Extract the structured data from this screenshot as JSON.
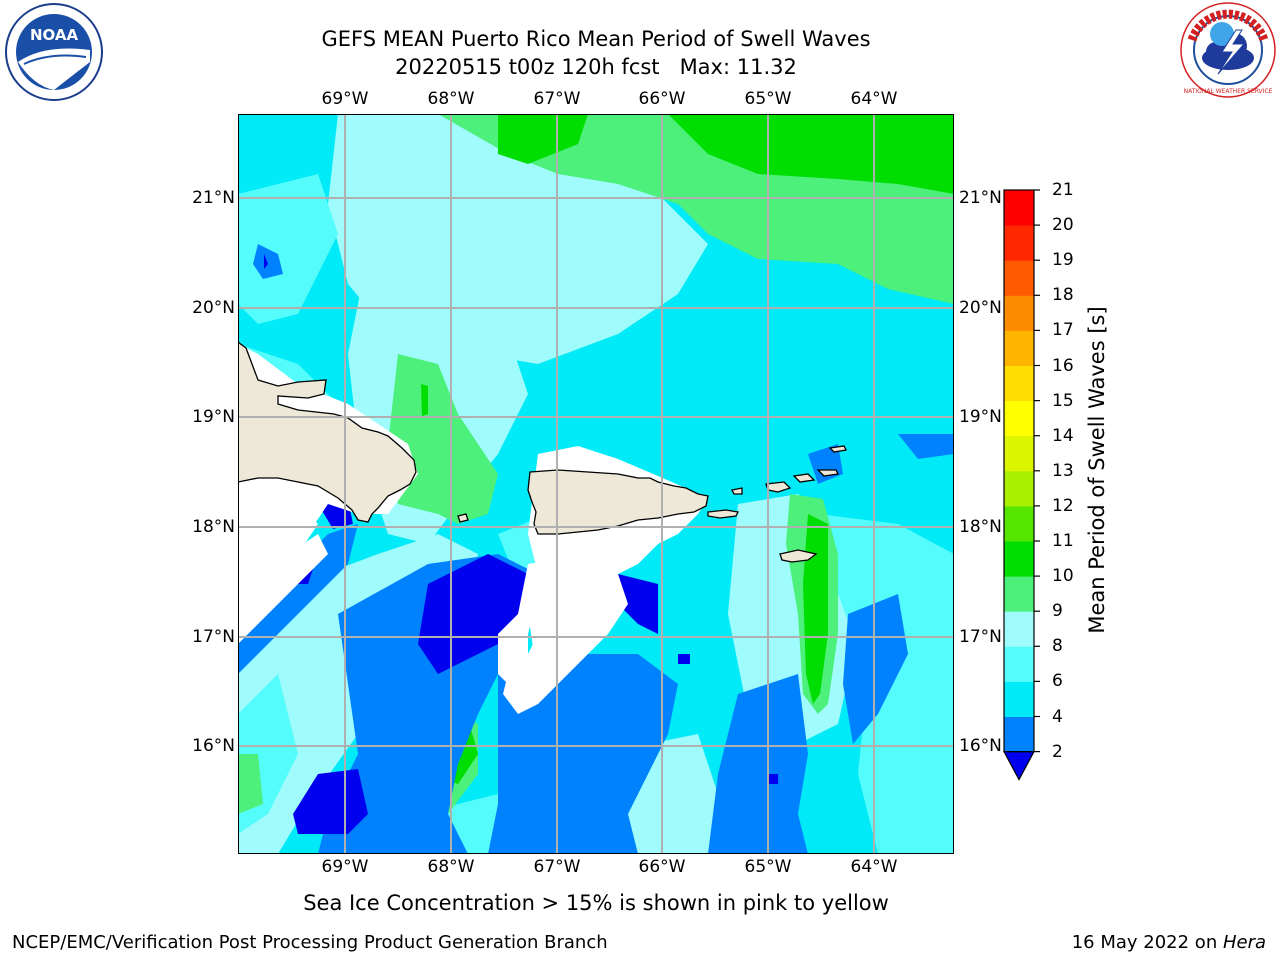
{
  "map": {
    "title_line1": "GEFS MEAN Puerto Rico Mean Period of Swell Waves",
    "title_line2": "20220515 t00z 120h fcst   Max: 11.32",
    "lon_labels": [
      "69°W",
      "68°W",
      "67°W",
      "66°W",
      "65°W",
      "64°W"
    ],
    "lat_labels": [
      "21°N",
      "20°N",
      "19°N",
      "18°N",
      "17°N",
      "16°N"
    ],
    "extent": {
      "lon": [
        -70.0,
        -63.3
      ],
      "lat": [
        15.0,
        21.75
      ]
    },
    "note": "Sea Ice Concentration > 15% is shown in pink to yellow",
    "regions": [
      "Hispaniola",
      "Puerto Rico",
      "Virgin Islands",
      "St. Croix"
    ]
  },
  "colorbar": {
    "label": "Mean Period of Swell Waves [s]",
    "ticks": [
      "2",
      "4",
      "6",
      "8",
      "9",
      "10",
      "11",
      "12",
      "13",
      "14",
      "15",
      "16",
      "17",
      "18",
      "19",
      "20",
      "21"
    ],
    "colors": [
      "#0000ee",
      "#0082ff",
      "#00eaf8",
      "#55fcfc",
      "#a0fcfc",
      "#4cf07a",
      "#00dd00",
      "#55e600",
      "#aaf000",
      "#dcf500",
      "#ffff00",
      "#ffdd00",
      "#ffb400",
      "#ff8c00",
      "#ff5a00",
      "#ff2800",
      "#ff0000"
    ]
  },
  "logos": {
    "noaa_text": "NOAA",
    "nws_text": "NATIONAL WEATHER SERVICE"
  },
  "footer": {
    "left": "NCEP/EMC/Verification Post Processing Product Generation Branch",
    "right_date": "16 May 2022 on ",
    "right_host": "Hera"
  }
}
